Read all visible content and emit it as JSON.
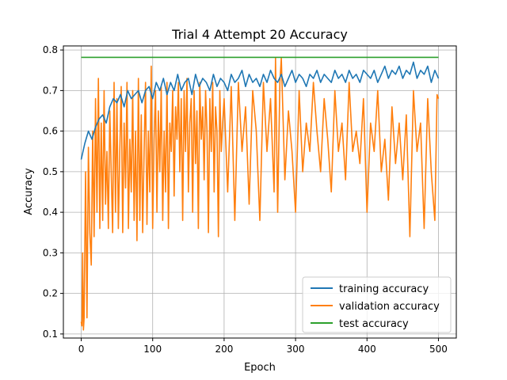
{
  "chart_data": {
    "type": "line",
    "title": "Trial 4 Attempt 20 Accuracy",
    "xlabel": "Epoch",
    "ylabel": "Accuracy",
    "xlim": [
      -25,
      525
    ],
    "ylim": [
      0.09,
      0.81
    ],
    "grid": true,
    "legend_position": "lower-right",
    "x_ticks": [
      0,
      100,
      200,
      300,
      400,
      500
    ],
    "y_ticks": [
      0.1,
      0.2,
      0.3,
      0.4,
      0.5,
      0.6,
      0.7,
      0.8
    ],
    "series": [
      {
        "name": "training accuracy",
        "color": "#1f77b4",
        "x": [
          0,
          5,
          10,
          15,
          20,
          25,
          30,
          35,
          40,
          45,
          50,
          55,
          60,
          65,
          70,
          75,
          80,
          85,
          90,
          95,
          100,
          105,
          110,
          115,
          120,
          125,
          130,
          135,
          140,
          145,
          150,
          155,
          160,
          165,
          170,
          175,
          180,
          185,
          190,
          195,
          200,
          205,
          210,
          215,
          220,
          225,
          230,
          235,
          240,
          245,
          250,
          255,
          260,
          265,
          270,
          275,
          280,
          285,
          290,
          295,
          300,
          305,
          310,
          315,
          320,
          325,
          330,
          335,
          340,
          345,
          350,
          355,
          360,
          365,
          370,
          375,
          380,
          385,
          390,
          395,
          400,
          405,
          410,
          415,
          420,
          425,
          430,
          435,
          440,
          445,
          450,
          455,
          460,
          465,
          470,
          475,
          480,
          485,
          490,
          495,
          500
        ],
        "y": [
          0.53,
          0.57,
          0.6,
          0.58,
          0.61,
          0.63,
          0.64,
          0.62,
          0.66,
          0.68,
          0.67,
          0.69,
          0.66,
          0.7,
          0.68,
          0.69,
          0.7,
          0.67,
          0.7,
          0.71,
          0.68,
          0.72,
          0.7,
          0.73,
          0.69,
          0.72,
          0.7,
          0.74,
          0.7,
          0.72,
          0.73,
          0.69,
          0.74,
          0.71,
          0.73,
          0.72,
          0.7,
          0.74,
          0.71,
          0.73,
          0.72,
          0.7,
          0.74,
          0.72,
          0.73,
          0.75,
          0.71,
          0.74,
          0.72,
          0.73,
          0.71,
          0.74,
          0.72,
          0.75,
          0.73,
          0.72,
          0.74,
          0.71,
          0.73,
          0.75,
          0.72,
          0.74,
          0.73,
          0.71,
          0.74,
          0.73,
          0.75,
          0.72,
          0.74,
          0.73,
          0.72,
          0.75,
          0.73,
          0.74,
          0.72,
          0.75,
          0.73,
          0.74,
          0.72,
          0.75,
          0.74,
          0.73,
          0.75,
          0.72,
          0.74,
          0.76,
          0.73,
          0.75,
          0.74,
          0.76,
          0.73,
          0.75,
          0.74,
          0.77,
          0.73,
          0.75,
          0.74,
          0.76,
          0.72,
          0.75,
          0.73
        ]
      },
      {
        "name": "validation accuracy",
        "color": "#ff7f0e",
        "x": [
          0,
          1,
          2,
          3,
          4,
          6,
          8,
          10,
          12,
          14,
          16,
          18,
          20,
          22,
          24,
          26,
          28,
          30,
          32,
          34,
          36,
          38,
          40,
          42,
          44,
          46,
          48,
          50,
          52,
          54,
          56,
          58,
          60,
          62,
          64,
          66,
          68,
          70,
          72,
          74,
          76,
          78,
          80,
          82,
          84,
          86,
          88,
          90,
          92,
          94,
          96,
          98,
          100,
          102,
          104,
          106,
          108,
          110,
          112,
          114,
          116,
          118,
          120,
          122,
          124,
          126,
          128,
          130,
          132,
          134,
          136,
          138,
          140,
          142,
          144,
          146,
          148,
          150,
          152,
          154,
          156,
          158,
          160,
          162,
          164,
          166,
          168,
          170,
          172,
          174,
          176,
          178,
          180,
          182,
          184,
          186,
          188,
          190,
          192,
          194,
          196,
          198,
          200,
          205,
          210,
          215,
          220,
          225,
          230,
          235,
          240,
          245,
          250,
          255,
          260,
          265,
          270,
          272,
          275,
          278,
          280,
          285,
          290,
          295,
          300,
          305,
          310,
          315,
          320,
          325,
          330,
          335,
          340,
          345,
          350,
          355,
          360,
          365,
          370,
          375,
          380,
          385,
          390,
          395,
          400,
          405,
          410,
          415,
          420,
          425,
          430,
          435,
          440,
          445,
          450,
          455,
          460,
          465,
          470,
          475,
          480,
          485,
          490,
          495,
          498,
          500
        ],
        "y": [
          0.13,
          0.12,
          0.3,
          0.11,
          0.14,
          0.5,
          0.14,
          0.56,
          0.35,
          0.27,
          0.6,
          0.34,
          0.68,
          0.4,
          0.73,
          0.36,
          0.62,
          0.38,
          0.7,
          0.42,
          0.55,
          0.36,
          0.65,
          0.5,
          0.35,
          0.72,
          0.4,
          0.68,
          0.36,
          0.55,
          0.71,
          0.35,
          0.62,
          0.46,
          0.72,
          0.36,
          0.58,
          0.45,
          0.7,
          0.38,
          0.6,
          0.33,
          0.73,
          0.38,
          0.64,
          0.35,
          0.55,
          0.72,
          0.37,
          0.6,
          0.45,
          0.76,
          0.36,
          0.58,
          0.7,
          0.4,
          0.65,
          0.5,
          0.71,
          0.38,
          0.6,
          0.45,
          0.72,
          0.36,
          0.62,
          0.55,
          0.7,
          0.44,
          0.66,
          0.58,
          0.72,
          0.5,
          0.68,
          0.38,
          0.7,
          0.55,
          0.73,
          0.45,
          0.62,
          0.68,
          0.4,
          0.7,
          0.52,
          0.65,
          0.36,
          0.72,
          0.58,
          0.66,
          0.48,
          0.7,
          0.6,
          0.35,
          0.68,
          0.55,
          0.72,
          0.45,
          0.66,
          0.6,
          0.34,
          0.7,
          0.55,
          0.62,
          0.68,
          0.45,
          0.71,
          0.38,
          0.72,
          0.55,
          0.66,
          0.42,
          0.7,
          0.6,
          0.38,
          0.72,
          0.55,
          0.68,
          0.45,
          0.78,
          0.4,
          0.72,
          0.78,
          0.48,
          0.65,
          0.55,
          0.4,
          0.7,
          0.5,
          0.62,
          0.55,
          0.72,
          0.6,
          0.5,
          0.68,
          0.58,
          0.45,
          0.7,
          0.55,
          0.62,
          0.48,
          0.72,
          0.55,
          0.6,
          0.52,
          0.68,
          0.4,
          0.62,
          0.55,
          0.7,
          0.5,
          0.58,
          0.43,
          0.66,
          0.52,
          0.62,
          0.48,
          0.64,
          0.34,
          0.7,
          0.55,
          0.62,
          0.36,
          0.68,
          0.5,
          0.38,
          0.69,
          0.68
        ]
      },
      {
        "name": "test accuracy",
        "color": "#2ca02c",
        "x": [
          0,
          500
        ],
        "y": [
          0.782,
          0.782
        ]
      }
    ]
  }
}
